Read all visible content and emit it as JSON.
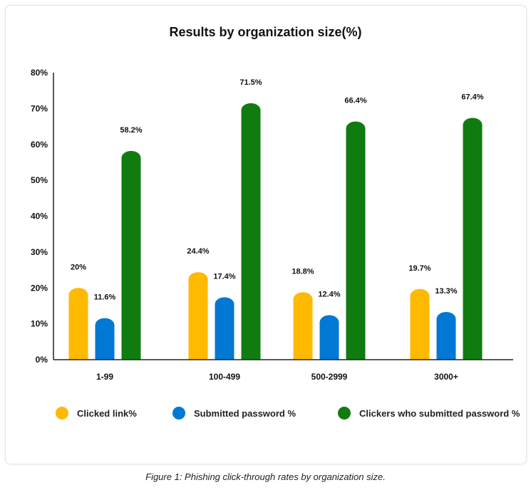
{
  "chart_data": {
    "type": "bar",
    "title": "Results by organization size(%)",
    "categories": [
      "1-99",
      "100-499",
      "500-2999",
      "3000+"
    ],
    "series": [
      {
        "name": "Clicked link%",
        "color": "#FFB900",
        "values": [
          20,
          24.4,
          18.8,
          19.7
        ],
        "labels": [
          "20%",
          "24.4%",
          "18.8%",
          "19.7%"
        ]
      },
      {
        "name": "Submitted password %",
        "color": "#0078D4",
        "values": [
          11.6,
          17.4,
          12.4,
          13.3
        ],
        "labels": [
          "11.6%",
          "17.4%",
          "12.4%",
          "13.3%"
        ]
      },
      {
        "name": "Clickers who submitted password %",
        "color": "#107C10",
        "values": [
          58.2,
          71.5,
          66.4,
          67.4
        ],
        "labels": [
          "58.2%",
          "71.5%",
          "66.4%",
          "67.4%"
        ]
      }
    ],
    "ylim": [
      0,
      80
    ],
    "yticks": [
      0,
      10,
      20,
      30,
      40,
      50,
      60,
      70,
      80
    ],
    "ytick_labels": [
      "0%",
      "10%",
      "20%",
      "30%",
      "40%",
      "50%",
      "60%",
      "70%",
      "80%"
    ],
    "xlabel": "",
    "ylabel": "",
    "grid": false,
    "legend_position": "bottom"
  },
  "legend": {
    "clicked": "Clicked link%",
    "submitted": "Submitted password %",
    "clickers": "Clickers who submitted password %"
  },
  "caption": "Figure 1: Phishing click-through rates by organization size."
}
